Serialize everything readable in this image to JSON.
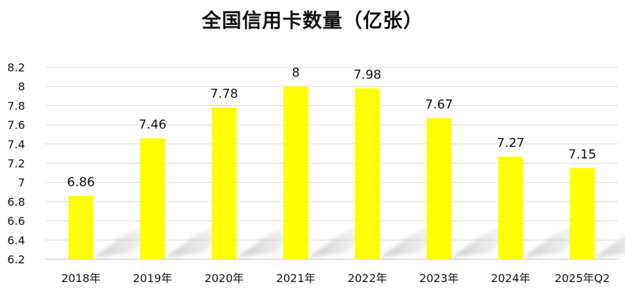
{
  "chart_data": {
    "type": "bar",
    "title": "全国信用卡数量（亿张）",
    "categories": [
      "2018年",
      "2019年",
      "2020年",
      "2021年",
      "2022年",
      "2023年",
      "2024年",
      "2025年Q2"
    ],
    "values": [
      6.86,
      7.46,
      7.78,
      8,
      7.98,
      7.67,
      7.27,
      7.15
    ],
    "data_labels": [
      "6.86",
      "7.46",
      "7.78",
      "8",
      "7.98",
      "7.67",
      "7.27",
      "7.15"
    ],
    "ylim": [
      6.2,
      8.2
    ],
    "yticks": [
      "8.2",
      "8",
      "7.8",
      "7.6",
      "7.4",
      "7.2",
      "7",
      "6.8",
      "6.6",
      "6.4",
      "6.2"
    ],
    "grid": true,
    "bar_color": "#FFFF00",
    "xlabel": "",
    "ylabel": ""
  }
}
